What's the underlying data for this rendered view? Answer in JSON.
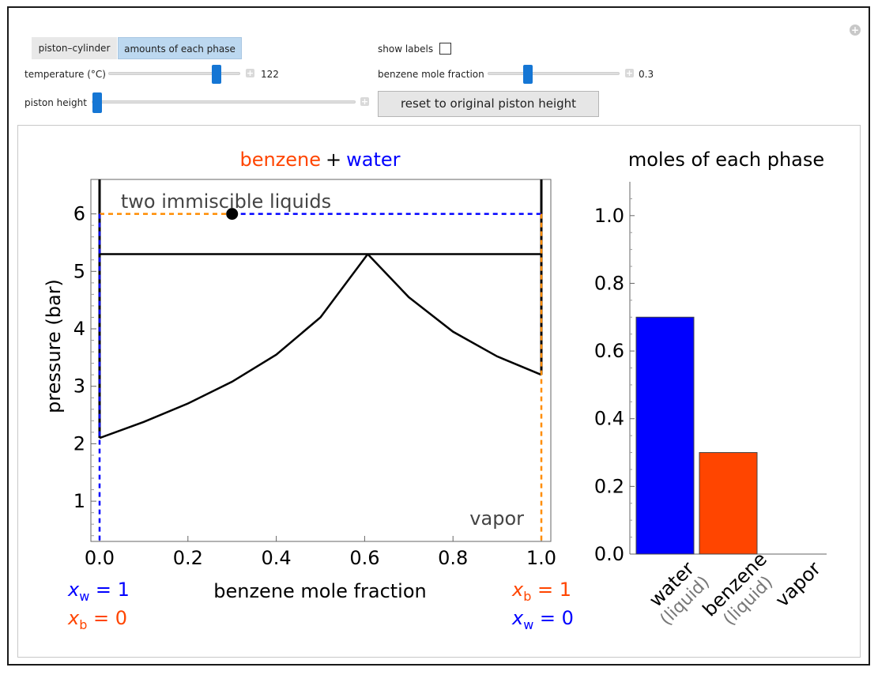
{
  "controls": {
    "tabs": [
      "piston–cylinder",
      "amounts of each phase"
    ],
    "active_tab": 1,
    "show_labels_label": "show labels",
    "show_labels_checked": false,
    "temperature": {
      "label": "temperature (°C)",
      "value": "122",
      "fraction": 0.82
    },
    "benzene_fraction": {
      "label": "benzene mole fraction",
      "value": "0.3",
      "fraction": 0.3
    },
    "piston_height": {
      "label": "piston height",
      "fraction": 0.0
    },
    "reset_button": "reset to original piston height",
    "expand_icon": "plus-icon",
    "corner_icon": "add-circle-icon"
  },
  "phase_diagram": {
    "title_benzene": "benzene",
    "title_plus": "+",
    "title_water": "water",
    "ylabel": "pressure (bar)",
    "xlabel": "benzene mole fraction",
    "region_label_top": "two immiscible liquids",
    "region_label_bottom": "vapor",
    "x_ticks": [
      "0.0",
      "0.2",
      "0.4",
      "0.6",
      "0.8",
      "1.0"
    ],
    "y_ticks": [
      "1",
      "2",
      "3",
      "4",
      "5",
      "6"
    ],
    "left_labels": {
      "xw_var": "x",
      "xw_sub": "w",
      "xw_val": " = 1",
      "xb_var": "x",
      "xb_sub": "b",
      "xb_val": " = 0"
    },
    "right_labels": {
      "xb_var": "x",
      "xb_sub": "b",
      "xb_val": " = 1",
      "xw_var": "x",
      "xw_sub": "w",
      "xw_val": " = 0"
    },
    "colors": {
      "benzene": "#ff4500",
      "water": "#0000ff",
      "dashed_orange": "#ff8c00"
    }
  },
  "chart_data": [
    {
      "type": "line",
      "xlabel": "benzene mole fraction",
      "ylabel": "pressure (bar)",
      "xlim": [
        0,
        1
      ],
      "ylim": [
        0.3,
        6.6
      ],
      "grid": false,
      "three_phase_pressure": 5.3,
      "azeotrope_x": 0.607,
      "water_saturation_pressure": 2.1,
      "benzene_saturation_pressure": 3.2,
      "state_point": {
        "x": 0.3,
        "y": 6.0
      },
      "series": [
        {
          "x": [
            0.0,
            0.1,
            0.2,
            0.3,
            0.4,
            0.5,
            0.607
          ],
          "values": [
            2.1,
            2.38,
            2.7,
            3.08,
            3.55,
            4.2,
            5.3
          ]
        },
        {
          "x": [
            0.607,
            0.7,
            0.8,
            0.9,
            1.0
          ],
          "values": [
            5.3,
            4.55,
            3.95,
            3.52,
            3.2
          ]
        }
      ]
    },
    {
      "type": "bar",
      "title": "moles of each phase",
      "categories": [
        "water",
        "benzene",
        "vapor"
      ],
      "sublabels": [
        "(liquid)",
        "(liquid)",
        ""
      ],
      "values": [
        0.7,
        0.3,
        0.0
      ],
      "colors": [
        "#0000ff",
        "#ff4500",
        "#888888"
      ],
      "ylim": [
        0,
        1.1
      ],
      "y_ticks": [
        "0.0",
        "0.2",
        "0.4",
        "0.6",
        "0.8",
        "1.0"
      ]
    }
  ]
}
